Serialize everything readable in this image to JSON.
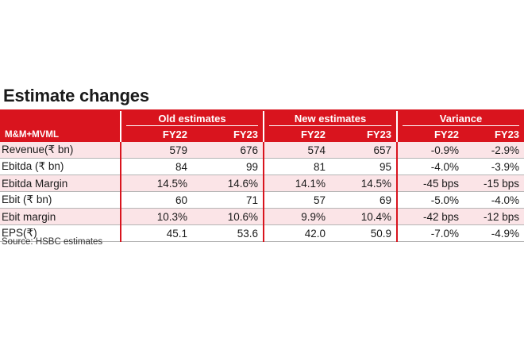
{
  "title": "Estimate changes",
  "colors": {
    "accent": "#d9141e",
    "row_shade": "#fbe4e7"
  },
  "header": {
    "groups": [
      "Old estimates",
      "New estimates",
      "Variance"
    ],
    "lead": "M&M+MVML",
    "years": [
      "FY22",
      "FY23",
      "FY22",
      "FY23",
      "FY22",
      "FY23"
    ]
  },
  "rows": [
    {
      "label": "Revenue(₹ bn)",
      "cells": [
        "579",
        "676",
        "574",
        "657",
        "-0.9%",
        "-2.9%"
      ]
    },
    {
      "label": "Ebitda (₹ bn)",
      "cells": [
        "84",
        "99",
        "81",
        "95",
        "-4.0%",
        "-3.9%"
      ]
    },
    {
      "label": "Ebitda Margin",
      "cells": [
        "14.5%",
        "14.6%",
        "14.1%",
        "14.5%",
        "-45 bps",
        "-15 bps"
      ]
    },
    {
      "label": "Ebit (₹ bn)",
      "cells": [
        "60",
        "71",
        "57",
        "69",
        "-5.0%",
        "-4.0%"
      ]
    },
    {
      "label": "Ebit margin",
      "cells": [
        "10.3%",
        "10.6%",
        "9.9%",
        "10.4%",
        "-42 bps",
        "-12 bps"
      ]
    },
    {
      "label": "EPS(₹)",
      "cells": [
        "45.1",
        "53.6",
        "42.0",
        "50.9",
        "-7.0%",
        "-4.9%"
      ]
    }
  ],
  "source": "Source: HSBC estimates"
}
